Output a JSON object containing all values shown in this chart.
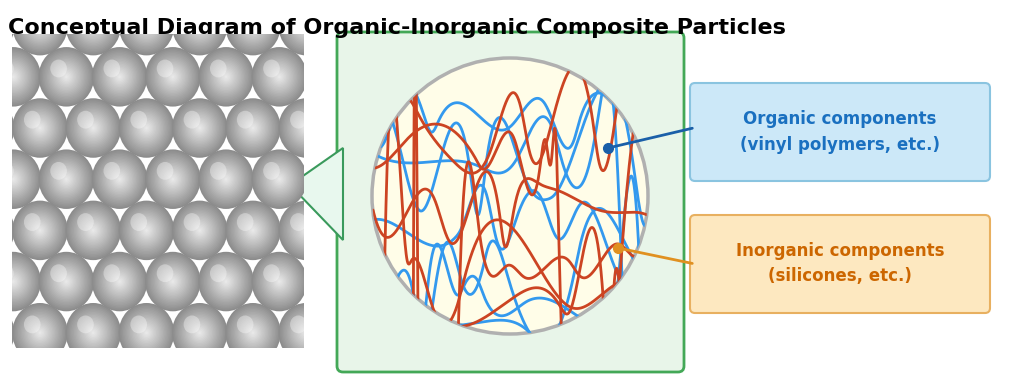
{
  "title": "Conceptual Diagram of Organic-Inorganic Composite Particles",
  "title_fontsize": 16,
  "title_fontweight": "bold",
  "bg_color": "#ffffff",
  "green_box_color": "#e8f5e9",
  "green_box_edge": "#43a857",
  "circle_fill": "#fffde8",
  "circle_edge": "#b0b0b0",
  "blue_line_color": "#3399ee",
  "red_line_color": "#cc4422",
  "organic_box_color": "#cce8f8",
  "organic_box_edge": "#8ac4e0",
  "inorganic_box_color": "#fde8c0",
  "inorganic_box_edge": "#e8b060",
  "organic_text": "Organic components\n(vinyl polymers, etc.)",
  "inorganic_text": "Inorganic components\n(silicones, etc.)",
  "organic_text_color": "#1a70c0",
  "inorganic_text_color": "#cc6600",
  "arrow_blue_color": "#1a5fa8",
  "arrow_orange_color": "#e09020",
  "zoom_triangle_fill": "#e8f8ee",
  "zoom_triangle_edge": "#3a9a5c",
  "sem_bg": "#aaaaaa",
  "sem_sphere_dark": "#888888",
  "sem_sphere_mid": "#c0c0c0",
  "sem_sphere_light": "#e0e0e0"
}
